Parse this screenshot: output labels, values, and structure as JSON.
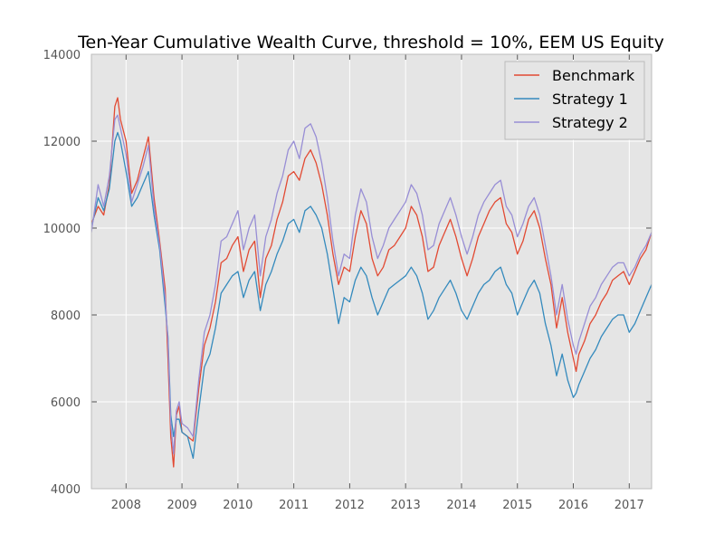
{
  "chart_data": {
    "type": "line",
    "title": "Ten-Year Cumulative Wealth Curve, threshold = 10%, EEM US Equity",
    "xlabel": "",
    "ylabel": "",
    "xlim": [
      2007.38,
      2017.4
    ],
    "ylim": [
      4000,
      14000
    ],
    "x_ticks": [
      2008,
      2009,
      2010,
      2011,
      2012,
      2013,
      2014,
      2015,
      2016,
      2017
    ],
    "x_tick_labels": [
      "2008",
      "2009",
      "2010",
      "2011",
      "2012",
      "2013",
      "2014",
      "2015",
      "2016",
      "2017"
    ],
    "y_ticks": [
      4000,
      6000,
      8000,
      10000,
      12000,
      14000
    ],
    "y_tick_labels": [
      "4000",
      "6000",
      "8000",
      "10000",
      "12000",
      "14000"
    ],
    "grid": true,
    "legend_position": "top-right",
    "series": [
      {
        "name": "Benchmark",
        "color": "#e24a33",
        "x": [
          2007.38,
          2007.5,
          2007.6,
          2007.7,
          2007.8,
          2007.85,
          2007.9,
          2008.0,
          2008.1,
          2008.2,
          2008.3,
          2008.4,
          2008.5,
          2008.6,
          2008.7,
          2008.75,
          2008.8,
          2008.85,
          2008.9,
          2008.95,
          2009.0,
          2009.1,
          2009.2,
          2009.3,
          2009.4,
          2009.5,
          2009.6,
          2009.7,
          2009.8,
          2009.9,
          2010.0,
          2010.1,
          2010.2,
          2010.3,
          2010.4,
          2010.5,
          2010.6,
          2010.7,
          2010.8,
          2010.9,
          2011.0,
          2011.1,
          2011.2,
          2011.3,
          2011.4,
          2011.5,
          2011.6,
          2011.7,
          2011.8,
          2011.9,
          2012.0,
          2012.1,
          2012.2,
          2012.3,
          2012.4,
          2012.5,
          2012.6,
          2012.7,
          2012.8,
          2012.9,
          2013.0,
          2013.1,
          2013.2,
          2013.3,
          2013.4,
          2013.5,
          2013.6,
          2013.7,
          2013.8,
          2013.9,
          2014.0,
          2014.1,
          2014.2,
          2014.3,
          2014.4,
          2014.5,
          2014.6,
          2014.7,
          2014.8,
          2014.9,
          2015.0,
          2015.1,
          2015.2,
          2015.3,
          2015.4,
          2015.5,
          2015.6,
          2015.7,
          2015.8,
          2015.9,
          2016.0,
          2016.05,
          2016.1,
          2016.2,
          2016.3,
          2016.4,
          2016.5,
          2016.6,
          2016.7,
          2016.8,
          2016.9,
          2017.0,
          2017.1,
          2017.2,
          2017.3,
          2017.4
        ],
        "values": [
          10100,
          10500,
          10300,
          11000,
          12800,
          13000,
          12500,
          12000,
          10800,
          11100,
          11600,
          12100,
          10700,
          9700,
          8600,
          7000,
          5200,
          4500,
          5700,
          5900,
          5300,
          5200,
          5100,
          6300,
          7300,
          7700,
          8300,
          9200,
          9300,
          9600,
          9800,
          9000,
          9500,
          9700,
          8400,
          9300,
          9600,
          10200,
          10600,
          11200,
          11300,
          11100,
          11600,
          11800,
          11500,
          11000,
          10300,
          9400,
          8700,
          9100,
          9000,
          9800,
          10400,
          10100,
          9300,
          8900,
          9100,
          9500,
          9600,
          9800,
          10000,
          10500,
          10300,
          9800,
          9000,
          9100,
          9600,
          9900,
          10200,
          9800,
          9300,
          8900,
          9300,
          9800,
          10100,
          10400,
          10600,
          10700,
          10100,
          9900,
          9400,
          9700,
          10200,
          10400,
          10000,
          9300,
          8700,
          7700,
          8400,
          7600,
          7000,
          6700,
          7100,
          7400,
          7800,
          8000,
          8300,
          8500,
          8800,
          8900,
          9000,
          8700,
          9000,
          9300,
          9500,
          9900
        ]
      },
      {
        "name": "Strategy 1",
        "color": "#348abd",
        "x": [
          2007.38,
          2007.5,
          2007.6,
          2007.7,
          2007.8,
          2007.85,
          2007.9,
          2008.0,
          2008.1,
          2008.2,
          2008.3,
          2008.4,
          2008.5,
          2008.6,
          2008.7,
          2008.75,
          2008.8,
          2008.85,
          2008.9,
          2008.95,
          2009.0,
          2009.1,
          2009.2,
          2009.3,
          2009.4,
          2009.5,
          2009.6,
          2009.7,
          2009.8,
          2009.9,
          2010.0,
          2010.1,
          2010.2,
          2010.3,
          2010.4,
          2010.5,
          2010.6,
          2010.7,
          2010.8,
          2010.9,
          2011.0,
          2011.1,
          2011.2,
          2011.3,
          2011.4,
          2011.5,
          2011.6,
          2011.7,
          2011.8,
          2011.9,
          2012.0,
          2012.1,
          2012.2,
          2012.3,
          2012.4,
          2012.5,
          2012.6,
          2012.7,
          2012.8,
          2012.9,
          2013.0,
          2013.1,
          2013.2,
          2013.3,
          2013.4,
          2013.5,
          2013.6,
          2013.7,
          2013.8,
          2013.9,
          2014.0,
          2014.1,
          2014.2,
          2014.3,
          2014.4,
          2014.5,
          2014.6,
          2014.7,
          2014.8,
          2014.9,
          2015.0,
          2015.1,
          2015.2,
          2015.3,
          2015.4,
          2015.5,
          2015.6,
          2015.7,
          2015.8,
          2015.9,
          2016.0,
          2016.05,
          2016.1,
          2016.2,
          2016.3,
          2016.4,
          2016.5,
          2016.6,
          2016.7,
          2016.8,
          2016.9,
          2017.0,
          2017.1,
          2017.2,
          2017.3,
          2017.4
        ],
        "values": [
          10000,
          10700,
          10400,
          10900,
          12000,
          12200,
          12000,
          11300,
          10500,
          10700,
          11000,
          11300,
          10300,
          9500,
          8200,
          7500,
          5700,
          5200,
          5600,
          5600,
          5300,
          5200,
          4700,
          5800,
          6800,
          7100,
          7700,
          8500,
          8700,
          8900,
          9000,
          8400,
          8800,
          9000,
          8100,
          8700,
          9000,
          9400,
          9700,
          10100,
          10200,
          9900,
          10400,
          10500,
          10300,
          10000,
          9400,
          8600,
          7800,
          8400,
          8300,
          8800,
          9100,
          8900,
          8400,
          8000,
          8300,
          8600,
          8700,
          8800,
          8900,
          9100,
          8900,
          8500,
          7900,
          8100,
          8400,
          8600,
          8800,
          8500,
          8100,
          7900,
          8200,
          8500,
          8700,
          8800,
          9000,
          9100,
          8700,
          8500,
          8000,
          8300,
          8600,
          8800,
          8500,
          7800,
          7300,
          6600,
          7100,
          6500,
          6100,
          6200,
          6400,
          6700,
          7000,
          7200,
          7500,
          7700,
          7900,
          8000,
          8000,
          7600,
          7800,
          8100,
          8400,
          8700
        ]
      },
      {
        "name": "Strategy 2",
        "color": "#988ed5",
        "x": [
          2007.38,
          2007.5,
          2007.6,
          2007.7,
          2007.8,
          2007.85,
          2007.9,
          2008.0,
          2008.1,
          2008.2,
          2008.3,
          2008.4,
          2008.5,
          2008.6,
          2008.7,
          2008.75,
          2008.8,
          2008.85,
          2008.9,
          2008.95,
          2009.0,
          2009.1,
          2009.2,
          2009.3,
          2009.4,
          2009.5,
          2009.6,
          2009.7,
          2009.8,
          2009.9,
          2010.0,
          2010.1,
          2010.2,
          2010.3,
          2010.4,
          2010.5,
          2010.6,
          2010.7,
          2010.8,
          2010.9,
          2011.0,
          2011.1,
          2011.2,
          2011.3,
          2011.4,
          2011.5,
          2011.6,
          2011.7,
          2011.8,
          2011.9,
          2012.0,
          2012.1,
          2012.2,
          2012.3,
          2012.4,
          2012.5,
          2012.6,
          2012.7,
          2012.8,
          2012.9,
          2013.0,
          2013.1,
          2013.2,
          2013.3,
          2013.4,
          2013.5,
          2013.6,
          2013.7,
          2013.8,
          2013.9,
          2014.0,
          2014.1,
          2014.2,
          2014.3,
          2014.4,
          2014.5,
          2014.6,
          2014.7,
          2014.8,
          2014.9,
          2015.0,
          2015.1,
          2015.2,
          2015.3,
          2015.4,
          2015.5,
          2015.6,
          2015.7,
          2015.8,
          2015.9,
          2016.0,
          2016.05,
          2016.1,
          2016.2,
          2016.3,
          2016.4,
          2016.5,
          2016.6,
          2016.7,
          2016.8,
          2016.9,
          2017.0,
          2017.1,
          2017.2,
          2017.3,
          2017.4
        ],
        "values": [
          9900,
          11000,
          10500,
          11200,
          12500,
          12600,
          12300,
          11700,
          10600,
          11000,
          11400,
          11900,
          10500,
          9600,
          8400,
          7400,
          5500,
          4800,
          5800,
          6000,
          5500,
          5400,
          5200,
          6500,
          7600,
          8000,
          8700,
          9700,
          9800,
          10100,
          10400,
          9500,
          10000,
          10300,
          8900,
          9800,
          10200,
          10800,
          11200,
          11800,
          12000,
          11600,
          12300,
          12400,
          12100,
          11500,
          10700,
          9700,
          8900,
          9400,
          9300,
          10300,
          10900,
          10600,
          9800,
          9300,
          9600,
          10000,
          10200,
          10400,
          10600,
          11000,
          10800,
          10300,
          9500,
          9600,
          10100,
          10400,
          10700,
          10300,
          9800,
          9400,
          9800,
          10300,
          10600,
          10800,
          11000,
          11100,
          10500,
          10300,
          9800,
          10100,
          10500,
          10700,
          10300,
          9600,
          8900,
          8000,
          8700,
          7900,
          7300,
          7100,
          7400,
          7800,
          8200,
          8400,
          8700,
          8900,
          9100,
          9200,
          9200,
          8900,
          9100,
          9400,
          9600,
          9900
        ]
      }
    ]
  }
}
